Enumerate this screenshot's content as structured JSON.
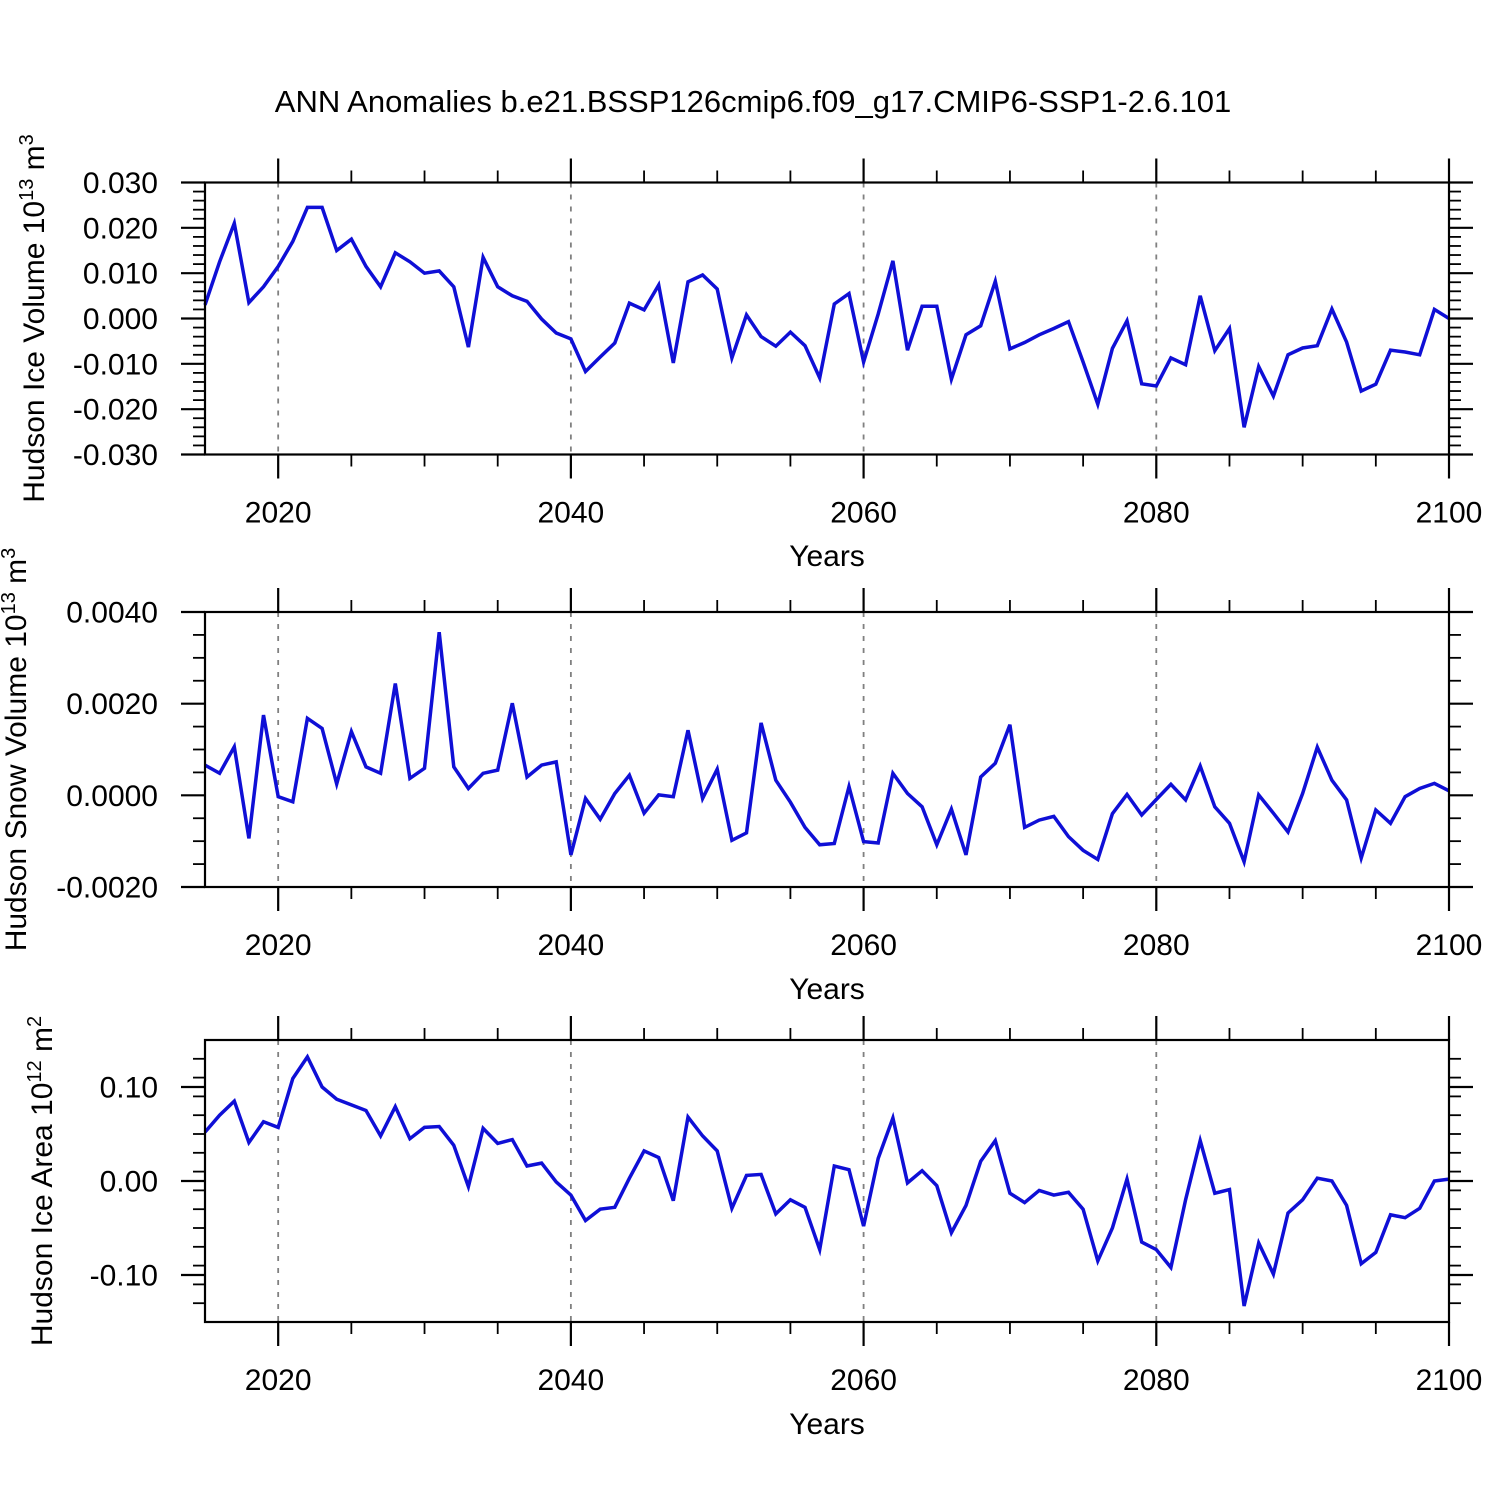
{
  "title": "ANN Anomalies b.e21.BSSP126cmip6.f09_g17.CMIP6-SSP1-2.6.101",
  "colors": {
    "line": "#0f0fd6",
    "axis": "#000000",
    "grid": "#808080",
    "background": "#ffffff"
  },
  "chart_data": {
    "type": "line",
    "title": "ANN Anomalies b.e21.BSSP126cmip6.f09_g17.CMIP6-SSP1-2.6.101",
    "legend": "none",
    "grid_years": [
      2020,
      2040,
      2060,
      2080
    ],
    "x_major_ticks": [
      2020,
      2040,
      2060,
      2080,
      2100
    ],
    "x_minor_step": 5,
    "xlim": [
      2015,
      2100
    ],
    "x": [
      2015,
      2016,
      2017,
      2018,
      2019,
      2020,
      2021,
      2022,
      2023,
      2024,
      2025,
      2026,
      2027,
      2028,
      2029,
      2030,
      2031,
      2032,
      2033,
      2034,
      2035,
      2036,
      2037,
      2038,
      2039,
      2040,
      2041,
      2042,
      2043,
      2044,
      2045,
      2046,
      2047,
      2048,
      2049,
      2050,
      2051,
      2052,
      2053,
      2054,
      2055,
      2056,
      2057,
      2058,
      2059,
      2060,
      2061,
      2062,
      2063,
      2064,
      2065,
      2066,
      2067,
      2068,
      2069,
      2070,
      2071,
      2072,
      2073,
      2074,
      2075,
      2076,
      2077,
      2078,
      2079,
      2080,
      2081,
      2082,
      2083,
      2084,
      2085,
      2086,
      2087,
      2088,
      2089,
      2090,
      2091,
      2092,
      2093,
      2094,
      2095,
      2096,
      2097,
      2098,
      2099,
      2100
    ],
    "panels": [
      {
        "id": "hudson-ice-volume",
        "xlabel": "Years",
        "ylabel": "Hudson Ice Volume 10^13 m^3",
        "ylabel_parts": [
          {
            "t": "Hudson Ice Volume 10"
          },
          {
            "t": "13",
            "sup": true
          },
          {
            "t": " m"
          },
          {
            "t": "3",
            "sup": true
          }
        ],
        "ylim": [
          -0.03,
          0.03
        ],
        "ytick_values": [
          0.03,
          0.02,
          0.01,
          0.0,
          -0.01,
          -0.02,
          -0.03
        ],
        "ytick_labels": [
          "0.030",
          "0.020",
          "0.010",
          "0.000",
          "-0.010",
          "-0.020",
          "-0.030"
        ],
        "y_minor_step": 0.002,
        "series": [
          {
            "name": "Hudson Ice Volume anomaly",
            "values": [
              0.003,
              0.0125,
              0.021,
              0.0035,
              0.007,
              0.0115,
              0.017,
              0.0245,
              0.0245,
              0.015,
              0.0175,
              0.0115,
              0.007,
              0.0145,
              0.0125,
              0.01,
              0.0105,
              0.007,
              -0.0063,
              0.0135,
              0.007,
              0.005,
              0.0038,
              -0.0001,
              -0.0032,
              -0.0045,
              -0.0117,
              -0.0085,
              -0.0054,
              0.0034,
              0.0019,
              0.0074,
              -0.0098,
              0.0081,
              0.0096,
              0.0065,
              -0.0087,
              0.0008,
              -0.004,
              -0.0061,
              -0.003,
              -0.006,
              -0.0131,
              0.0032,
              0.0055,
              -0.0096,
              0.001,
              0.0127,
              -0.007,
              0.0027,
              0.0027,
              -0.0134,
              -0.0036,
              -0.0016,
              0.0082,
              -0.0067,
              -0.0053,
              -0.0036,
              -0.0022,
              -0.0007,
              -0.0096,
              -0.0189,
              -0.0066,
              -0.0005,
              -0.0144,
              -0.0149,
              -0.0087,
              -0.0102,
              0.005,
              -0.0071,
              -0.0022,
              -0.024,
              -0.0106,
              -0.0171,
              -0.008,
              -0.0065,
              -0.006,
              0.0021,
              -0.0052,
              -0.016,
              -0.0145,
              -0.007,
              -0.0074,
              -0.008,
              0.002,
              0.0
            ]
          }
        ]
      },
      {
        "id": "hudson-snow-volume",
        "xlabel": "Years",
        "ylabel": "Hudson Snow Volume 10^13 m^3",
        "ylabel_parts": [
          {
            "t": "Hudson Snow Volume 10"
          },
          {
            "t": "13",
            "sup": true
          },
          {
            "t": " m"
          },
          {
            "t": "3",
            "sup": true
          }
        ],
        "ylim": [
          -0.002,
          0.004
        ],
        "ytick_values": [
          0.004,
          0.002,
          0.0,
          -0.002
        ],
        "ytick_labels": [
          "0.0040",
          "0.0020",
          "0.0000",
          "-0.0020"
        ],
        "y_minor_step": 0.0005,
        "series": [
          {
            "name": "Hudson Snow Volume anomaly",
            "values": [
              0.00066,
              0.00048,
              0.00106,
              -0.00094,
              0.00175,
              -3e-05,
              -0.00014,
              0.00168,
              0.00146,
              0.00025,
              0.00139,
              0.00062,
              0.00048,
              0.00244,
              0.00037,
              0.00059,
              0.00356,
              0.00062,
              0.00015,
              0.00048,
              0.00055,
              0.00201,
              0.0004,
              0.00066,
              0.00073,
              -0.0013,
              -7e-05,
              -0.00052,
              4e-05,
              0.00044,
              -0.00039,
              1e-05,
              -3e-05,
              0.00142,
              -7e-05,
              0.00057,
              -0.00098,
              -0.00082,
              0.00158,
              0.00033,
              -0.00015,
              -0.0007,
              -0.00108,
              -0.00105,
              0.00019,
              -0.00101,
              -0.00104,
              0.00048,
              4e-05,
              -0.00025,
              -0.00108,
              -0.0003,
              -0.0013,
              0.0004,
              0.0007,
              0.00154,
              -0.0007,
              -0.00054,
              -0.00046,
              -0.0009,
              -0.0012,
              -0.0014,
              -0.0004,
              2e-05,
              -0.00043,
              -9e-05,
              0.00024,
              -0.0001,
              0.00064,
              -0.00025,
              -0.00061,
              -0.00145,
              1e-05,
              -0.00039,
              -0.0008,
              4e-05,
              0.00105,
              0.00033,
              -0.0001,
              -0.00137,
              -0.00032,
              -0.00061,
              -3e-05,
              0.00015,
              0.00026,
              0.0001
            ]
          }
        ]
      },
      {
        "id": "hudson-ice-area",
        "xlabel": "Years",
        "ylabel": "Hudson Ice Area 10^12 m^2",
        "ylabel_parts": [
          {
            "t": "Hudson Ice Area 10"
          },
          {
            "t": "12",
            "sup": true
          },
          {
            "t": " m"
          },
          {
            "t": "2",
            "sup": true
          }
        ],
        "ylim": [
          -0.15,
          0.15
        ],
        "ytick_values": [
          0.1,
          0.0,
          -0.1
        ],
        "ytick_labels": [
          "0.10",
          "0.00",
          "-0.10"
        ],
        "y_minor_step": 0.02,
        "series": [
          {
            "name": "Hudson Ice Area anomaly",
            "values": [
              0.052,
              0.07,
              0.085,
              0.041,
              0.063,
              0.057,
              0.109,
              0.132,
              0.1,
              0.087,
              0.081,
              0.075,
              0.048,
              0.079,
              0.045,
              0.057,
              0.058,
              0.038,
              -0.006,
              0.056,
              0.04,
              0.044,
              0.016,
              0.019,
              -0.001,
              -0.015,
              -0.042,
              -0.03,
              -0.028,
              0.003,
              0.032,
              0.025,
              -0.021,
              0.068,
              0.048,
              0.032,
              -0.029,
              0.006,
              0.007,
              -0.035,
              -0.02,
              -0.028,
              -0.073,
              0.016,
              0.012,
              -0.048,
              0.024,
              0.067,
              -0.002,
              0.011,
              -0.005,
              -0.055,
              -0.026,
              0.021,
              0.043,
              -0.013,
              -0.023,
              -0.01,
              -0.015,
              -0.012,
              -0.03,
              -0.085,
              -0.05,
              0.002,
              -0.065,
              -0.073,
              -0.092,
              -0.02,
              0.043,
              -0.013,
              -0.009,
              -0.133,
              -0.066,
              -0.099,
              -0.034,
              -0.02,
              0.003,
              0.0,
              -0.026,
              -0.088,
              -0.076,
              -0.036,
              -0.039,
              -0.029,
              0.0,
              0.002
            ]
          }
        ]
      }
    ]
  }
}
